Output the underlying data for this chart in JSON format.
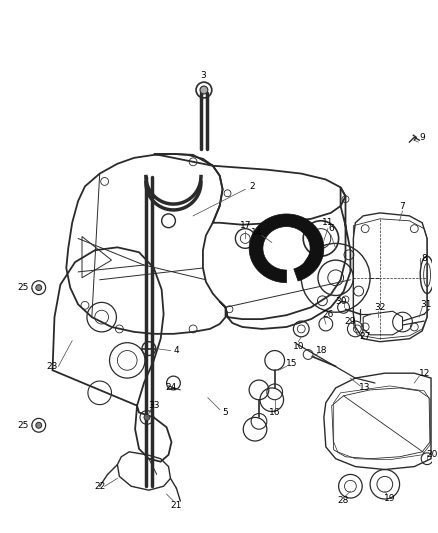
{
  "bg_color": "#ffffff",
  "line_color": "#2a2a2a",
  "label_color": "#000000",
  "fig_width": 4.38,
  "fig_height": 5.33,
  "dpi": 100,
  "lw_case": 1.3,
  "lw_thin": 0.7,
  "lw_med": 1.0,
  "lw_leader": 0.55,
  "leader_color": "#555555",
  "label_fs": 6.5
}
